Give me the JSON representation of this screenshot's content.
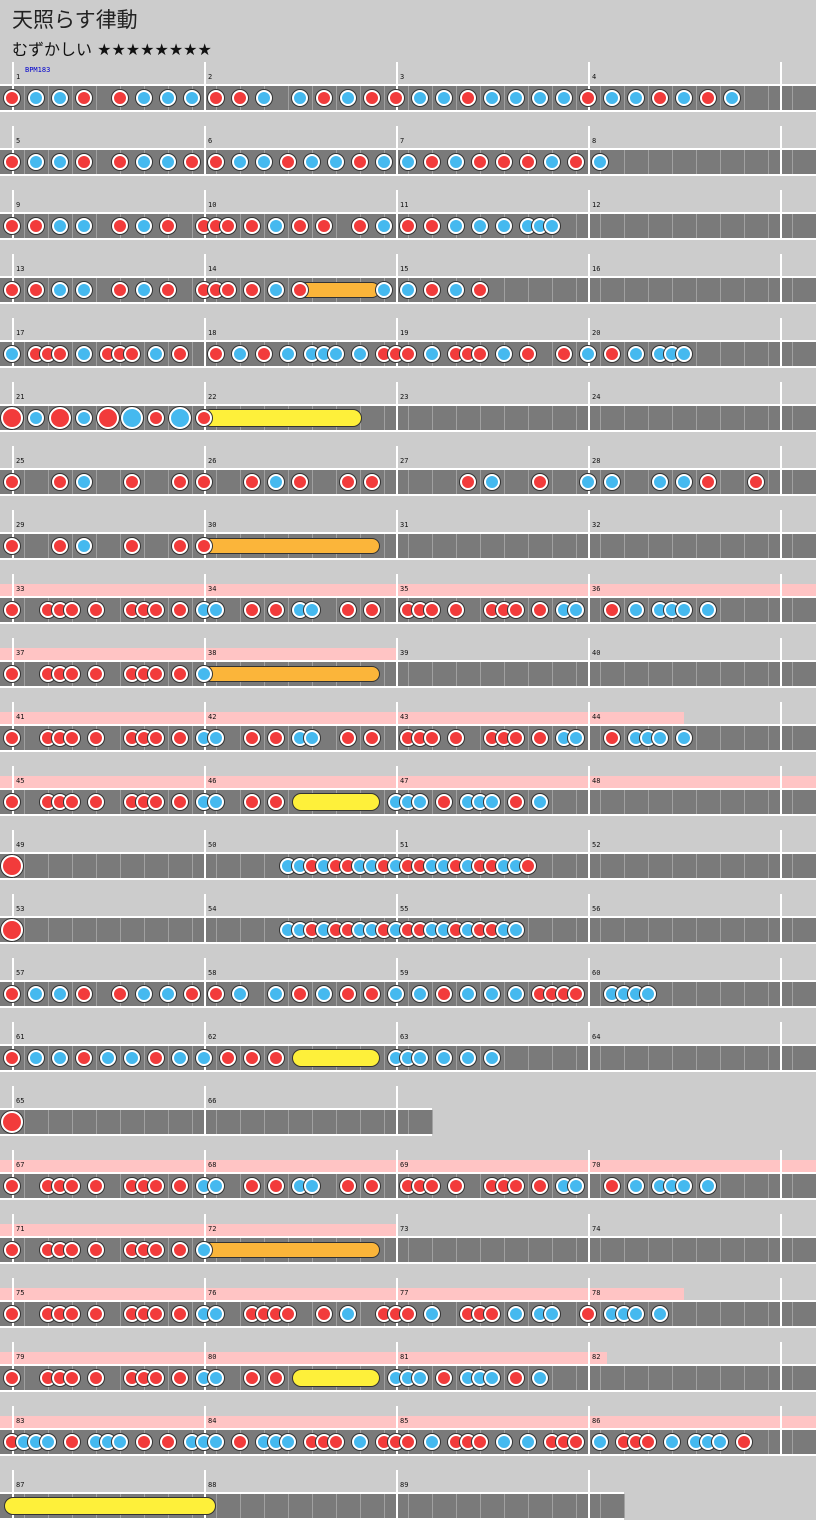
{
  "song": {
    "title": "天照らす律動",
    "difficulty": "むずかしい",
    "stars": "★★★★★★★★"
  },
  "bpm_label": "BPM183",
  "colors": {
    "don": "#f23b3b",
    "ka": "#45b9ef",
    "drumroll": "#fef03a",
    "balloon": "#fbb53a",
    "gogo": "#ffc4c4",
    "lane": "#7a7a7a",
    "background": "#cccccc"
  },
  "rows": [
    {
      "measures": [
        "1",
        "2",
        "3",
        "4"
      ],
      "gogo": 0,
      "notes": "D.K.K.D..D.K.K.D.D.K.K.D.K.K.D.K.K.D.K.D.K.D.K.K.D.K.K.D.K.D.K"
    },
    {
      "measures": [
        "5",
        "6",
        "7",
        "8"
      ],
      "gogo": 0,
      "notes": "D.K.K.D..D.K.K.D.D.K.K.D.K.K.D.K.K.D.K.D.D.D.K.D.K"
    },
    {
      "measures": [
        "9",
        "10",
        "11",
        "12"
      ],
      "gogo": 0,
      "notes": "D.D.K.K..D.K.D..DDD.D.K.D.D..D.K.D.D.K.K.K.KKK"
    },
    {
      "measures": [
        "13",
        "14",
        "15",
        "16"
      ],
      "gogo": 0,
      "notes": "D.D.K.K..D.K.D..DDD.D.K.D.K..K.K.K.D.K.D",
      "balloon": {
        "start": 24,
        "end": 30.2,
        "count": "9"
      }
    },
    {
      "measures": [
        "17",
        "18",
        "19",
        "20"
      ],
      "gogo": 0,
      "notes": "K.DDD.K.DDD.K.D..D.K.D.K.KKK.K.DDD.K.DDD.K.D..D.K.D.K.KKK"
    },
    {
      "measures": [
        "21",
        "22",
        "23",
        "24"
      ],
      "gogo": 0,
      "notes": "big",
      "roll": {
        "start": 16.5,
        "end": 28.5
      }
    },
    {
      "measures": [
        "25",
        "26",
        "27",
        "28"
      ],
      "gogo": 0,
      "notes": "sparse1"
    },
    {
      "measures": [
        "29",
        "30",
        "31",
        "32"
      ],
      "gogo": 0,
      "notes": "sparse2",
      "balloon": {
        "start": 16,
        "end": 30.2,
        "count": "21"
      }
    },
    {
      "measures": [
        "33",
        "34",
        "35",
        "36"
      ],
      "gogo": 4,
      "notes": "g1"
    },
    {
      "measures": [
        "37",
        "38",
        "39",
        "40"
      ],
      "gogo": 2,
      "notes": "g2",
      "balloon": {
        "start": 16,
        "end": 30.2,
        "count": "21"
      }
    },
    {
      "measures": [
        "41",
        "42",
        "43",
        "44"
      ],
      "gogo": 3.5,
      "notes": "g3"
    },
    {
      "measures": [
        "45",
        "46",
        "47",
        "48"
      ],
      "gogo": 4,
      "notes": "g4",
      "roll": {
        "start": 24,
        "end": 30
      }
    },
    {
      "measures": [
        "49",
        "50",
        "51",
        "52"
      ],
      "gogo": 0,
      "notes": "r49"
    },
    {
      "measures": [
        "53",
        "54",
        "55",
        "56"
      ],
      "gogo": 0,
      "notes": "r53"
    },
    {
      "measures": [
        "57",
        "58",
        "59",
        "60"
      ],
      "gogo": 0,
      "notes": "r57"
    },
    {
      "measures": [
        "61",
        "62",
        "63",
        "64"
      ],
      "gogo": 0,
      "notes": "r61",
      "roll": {
        "start": 24,
        "end": 30
      }
    },
    {
      "measures": [
        "65",
        "66"
      ],
      "gogo": 0,
      "notes": "r65"
    },
    {
      "measures": [
        "67",
        "68",
        "69",
        "70"
      ],
      "gogo": 4,
      "notes": "g1"
    },
    {
      "measures": [
        "71",
        "72",
        "73",
        "74"
      ],
      "gogo": 2,
      "notes": "g2",
      "balloon": {
        "start": 16,
        "end": 30.2,
        "count": "21"
      }
    },
    {
      "measures": [
        "75",
        "76",
        "77",
        "78"
      ],
      "gogo": 3.5,
      "notes": "g5"
    },
    {
      "measures": [
        "79",
        "80",
        "81",
        "82"
      ],
      "gogo": 3.1,
      "notes": "g6",
      "roll": {
        "start": 24,
        "end": 30
      }
    },
    {
      "measures": [
        "83",
        "84",
        "85",
        "86"
      ],
      "gogo": 4,
      "notes": "g7"
    },
    {
      "measures": [
        "87",
        "88",
        "89"
      ],
      "gogo": 0,
      "notes": "r87",
      "roll": {
        "start": 0,
        "end": 16.3
      }
    }
  ]
}
